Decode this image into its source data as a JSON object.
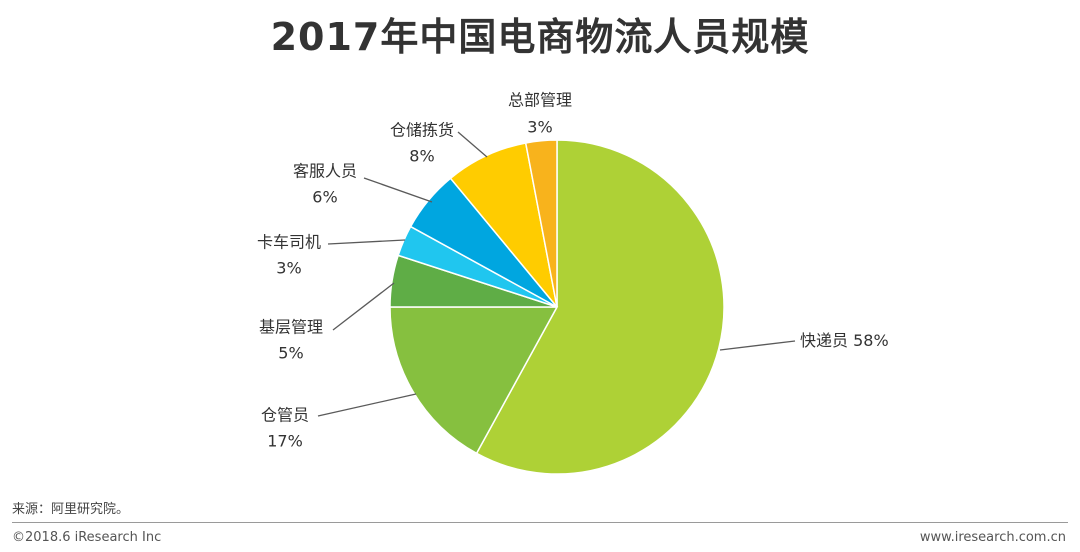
{
  "title": "2017年中国电商物流人员规模",
  "source": "来源：阿里研究院。",
  "footer": {
    "copyright": "©2018.6 iResearch Inc",
    "website": "www.iresearch.com.cn"
  },
  "chart_data": {
    "type": "pie",
    "start": "12 o'clock, clockwise",
    "slices": [
      {
        "label": "快递员",
        "value": 58,
        "display": "58%",
        "color": "#aed136"
      },
      {
        "label": "仓管员",
        "value": 17,
        "display": "17%",
        "color": "#86c03f"
      },
      {
        "label": "基层管理",
        "value": 5,
        "display": "5%",
        "color": "#5fad46"
      },
      {
        "label": "卡车司机",
        "value": 3,
        "display": "3%",
        "color": "#20c6ef"
      },
      {
        "label": "客服人员",
        "value": 6,
        "display": "6%",
        "color": "#00a6e0"
      },
      {
        "label": "仓储拣货",
        "value": 8,
        "display": "8%",
        "color": "#ffcc00"
      },
      {
        "label": "总部管理",
        "value": 3,
        "display": "3%",
        "color": "#f8b31c"
      }
    ]
  }
}
